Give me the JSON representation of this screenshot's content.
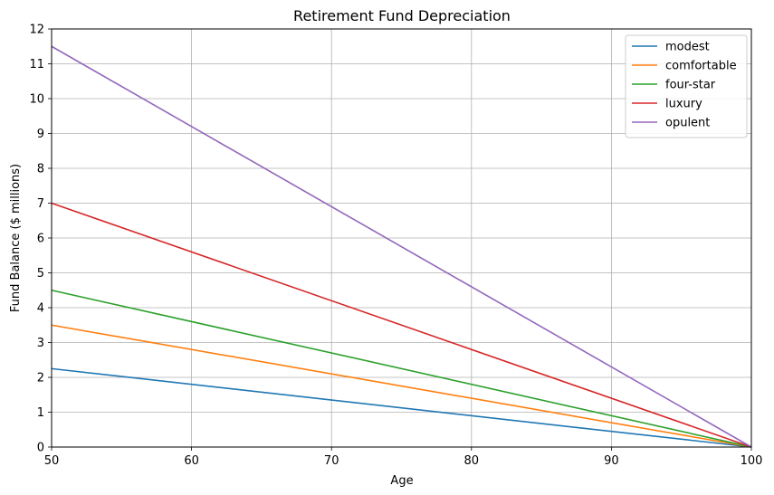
{
  "chart_data": {
    "type": "line",
    "title": "Retirement Fund Depreciation",
    "xlabel": "Age",
    "ylabel": "Fund Balance ($ millions)",
    "xlim": [
      50,
      100
    ],
    "ylim": [
      0,
      12
    ],
    "xticks": [
      50,
      60,
      70,
      80,
      90,
      100
    ],
    "yticks": [
      0,
      1,
      2,
      3,
      4,
      5,
      6,
      7,
      8,
      9,
      10,
      11,
      12
    ],
    "grid": true,
    "legend_position": "top-right",
    "series": [
      {
        "name": "modest",
        "color": "#1f77b4",
        "x": [
          50,
          100
        ],
        "y": [
          2.25,
          0
        ]
      },
      {
        "name": "comfortable",
        "color": "#ff7f0e",
        "x": [
          50,
          100
        ],
        "y": [
          3.5,
          0
        ]
      },
      {
        "name": "four-star",
        "color": "#2ca02c",
        "x": [
          50,
          100
        ],
        "y": [
          4.5,
          0
        ]
      },
      {
        "name": "luxury",
        "color": "#d62728",
        "x": [
          50,
          100
        ],
        "y": [
          7.0,
          0
        ]
      },
      {
        "name": "opulent",
        "color": "#9467bd",
        "x": [
          50,
          100
        ],
        "y": [
          11.5,
          0
        ]
      }
    ]
  }
}
